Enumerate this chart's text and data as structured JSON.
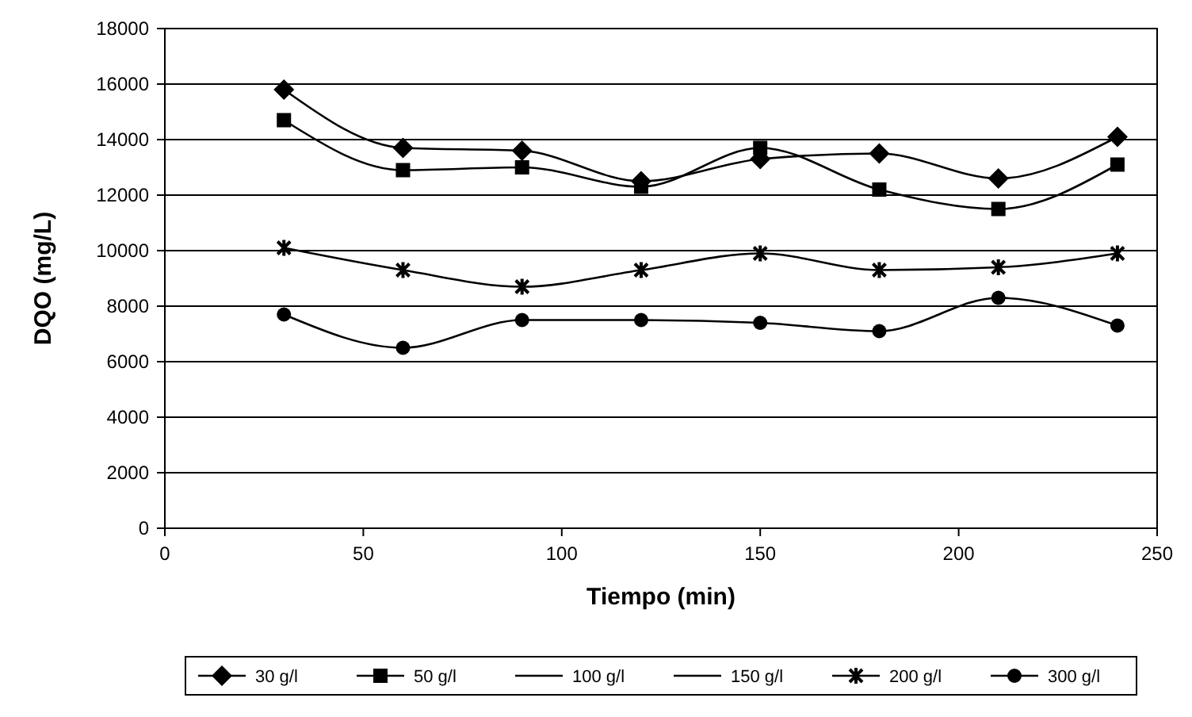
{
  "chart_data": {
    "type": "line",
    "xlabel": "Tiempo (min)",
    "ylabel": "DQO (mg/L)",
    "x": [
      30,
      60,
      90,
      120,
      150,
      180,
      210,
      240
    ],
    "xlim": [
      0,
      250
    ],
    "xticks": [
      0,
      50,
      100,
      150,
      200,
      250
    ],
    "ylim": [
      0,
      18000
    ],
    "yticks": [
      0,
      2000,
      4000,
      6000,
      8000,
      10000,
      12000,
      14000,
      16000,
      18000
    ],
    "grid": "y",
    "legend": "bottom",
    "line_style": "solid",
    "series": [
      {
        "name": "30 g/l",
        "color": "#000000",
        "marker": "diamond",
        "values": [
          15800,
          13700,
          13600,
          12500,
          13300,
          13500,
          12600,
          14100
        ]
      },
      {
        "name": "50 g/l",
        "color": "#000000",
        "marker": "square",
        "values": [
          14700,
          12900,
          13000,
          12300,
          13700,
          12200,
          11500,
          13100
        ]
      },
      {
        "name": "100 g/l",
        "color": "#000000",
        "marker": "none",
        "values": [
          null,
          null,
          null,
          null,
          null,
          null,
          null,
          null
        ]
      },
      {
        "name": "150 g/l",
        "color": "#000000",
        "marker": "none",
        "values": [
          null,
          null,
          null,
          null,
          null,
          null,
          null,
          null
        ]
      },
      {
        "name": "200 g/l",
        "color": "#000000",
        "marker": "cross",
        "values": [
          10100,
          9300,
          8700,
          9300,
          9900,
          9300,
          9400,
          9900
        ]
      },
      {
        "name": "300 g/l",
        "color": "#000000",
        "marker": "circle",
        "values": [
          7700,
          6500,
          7500,
          7500,
          7400,
          7100,
          8300,
          7300
        ]
      }
    ]
  }
}
